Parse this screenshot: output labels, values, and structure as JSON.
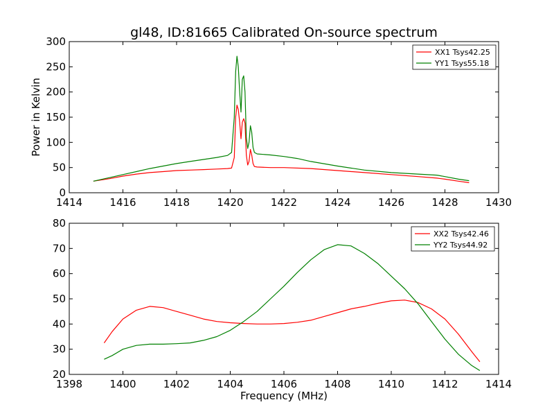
{
  "chart_data": [
    {
      "type": "line",
      "title": "gl48, ID:81665 Calibrated On-source spectrum",
      "xlabel": "",
      "ylabel": "Power in Kelvin",
      "xlim": [
        1414,
        1430
      ],
      "ylim": [
        0,
        300
      ],
      "xticks": [
        "1414",
        "1416",
        "1418",
        "1420",
        "1422",
        "1424",
        "1426",
        "1428",
        "1430"
      ],
      "yticks": [
        "0",
        "50",
        "100",
        "150",
        "200",
        "250",
        "300"
      ],
      "legend_position": "top-right",
      "grid": false,
      "series": [
        {
          "name": "XX1 Tsys42.25",
          "color": "#ff0000",
          "x": [
            1414.9,
            1415.5,
            1416.0,
            1416.5,
            1417.0,
            1417.5,
            1418.0,
            1418.5,
            1419.0,
            1419.5,
            1419.9,
            1420.05,
            1420.15,
            1420.2,
            1420.25,
            1420.3,
            1420.35,
            1420.4,
            1420.45,
            1420.5,
            1420.55,
            1420.6,
            1420.65,
            1420.7,
            1420.75,
            1420.8,
            1420.85,
            1420.9,
            1421.0,
            1421.5,
            1422.0,
            1423.0,
            1424.0,
            1425.0,
            1426.0,
            1427.0,
            1427.7,
            1428.0,
            1428.5,
            1428.9
          ],
          "y": [
            23,
            28,
            33,
            37,
            40,
            42,
            44,
            45,
            46,
            47,
            48,
            49,
            70,
            150,
            174,
            165,
            140,
            107,
            140,
            147,
            138,
            75,
            55,
            62,
            86,
            75,
            58,
            52,
            51,
            50,
            50,
            48,
            44,
            40,
            36,
            32,
            29,
            27,
            23,
            20
          ]
        },
        {
          "name": "YY1 Tsys55.18",
          "color": "#008000",
          "x": [
            1414.9,
            1415.5,
            1416.0,
            1416.5,
            1417.0,
            1417.5,
            1418.0,
            1418.5,
            1419.0,
            1419.5,
            1419.9,
            1420.05,
            1420.15,
            1420.2,
            1420.25,
            1420.3,
            1420.35,
            1420.4,
            1420.45,
            1420.5,
            1420.55,
            1420.6,
            1420.65,
            1420.7,
            1420.75,
            1420.8,
            1420.85,
            1420.9,
            1421.0,
            1421.5,
            1422.0,
            1422.5,
            1423.0,
            1424.0,
            1425.0,
            1426.0,
            1427.0,
            1427.7,
            1428.0,
            1428.5,
            1428.9
          ],
          "y": [
            23,
            30,
            36,
            42,
            48,
            53,
            58,
            62,
            66,
            70,
            74,
            80,
            150,
            240,
            271,
            250,
            200,
            160,
            225,
            232,
            200,
            110,
            88,
            100,
            133,
            120,
            90,
            80,
            77,
            75,
            72,
            68,
            62,
            53,
            45,
            40,
            37,
            35,
            32,
            27,
            24
          ]
        }
      ]
    },
    {
      "type": "line",
      "title": "",
      "xlabel": "Frequency (MHz)",
      "ylabel": "",
      "xlim": [
        1398,
        1414
      ],
      "ylim": [
        20,
        80
      ],
      "xticks": [
        "1398",
        "1400",
        "1402",
        "1404",
        "1406",
        "1408",
        "1410",
        "1412",
        "1414"
      ],
      "yticks": [
        "20",
        "30",
        "40",
        "50",
        "60",
        "70",
        "80"
      ],
      "legend_position": "top-right",
      "grid": false,
      "series": [
        {
          "name": "XX2 Tsys42.46",
          "color": "#ff0000",
          "x": [
            1399.3,
            1399.6,
            1400.0,
            1400.5,
            1401.0,
            1401.5,
            1402.0,
            1402.5,
            1403.0,
            1403.5,
            1404.0,
            1404.5,
            1405.0,
            1405.5,
            1406.0,
            1406.5,
            1407.0,
            1407.5,
            1408.0,
            1408.5,
            1409.0,
            1409.5,
            1410.0,
            1410.5,
            1411.0,
            1411.5,
            1412.0,
            1412.5,
            1413.0,
            1413.3
          ],
          "y": [
            32.5,
            37,
            42,
            45.5,
            47,
            46.5,
            45,
            43.5,
            42,
            41,
            40.5,
            40.2,
            40,
            40,
            40.2,
            40.7,
            41.5,
            43,
            44.5,
            46,
            47,
            48.2,
            49.2,
            49.5,
            48.5,
            46,
            42,
            36,
            29,
            25
          ]
        },
        {
          "name": "YY2 Tsys44.92",
          "color": "#008000",
          "x": [
            1399.3,
            1399.6,
            1400.0,
            1400.5,
            1401.0,
            1401.5,
            1402.0,
            1402.5,
            1403.0,
            1403.5,
            1404.0,
            1404.5,
            1405.0,
            1405.5,
            1406.0,
            1406.5,
            1407.0,
            1407.5,
            1408.0,
            1408.5,
            1409.0,
            1409.5,
            1410.0,
            1410.5,
            1411.0,
            1411.5,
            1412.0,
            1412.5,
            1413.0,
            1413.3
          ],
          "y": [
            26,
            27.5,
            30,
            31.5,
            32,
            32,
            32.2,
            32.5,
            33.5,
            35,
            37.5,
            41,
            45,
            50,
            55,
            60.5,
            65.5,
            69.5,
            71.5,
            71,
            68,
            64,
            59,
            54,
            48,
            41,
            34,
            28,
            23.5,
            21.5
          ]
        }
      ]
    }
  ]
}
